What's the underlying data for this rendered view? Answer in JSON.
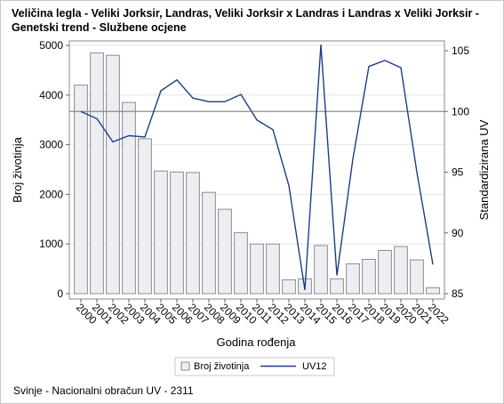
{
  "chart_data": {
    "type": "bar+line",
    "title": "Veličina legla - Veliki Jorksir, Landras, Veliki Jorksir x Landras i Landras x Veliki Jorksir - Genetski trend - Službene ocjene",
    "categories": [
      "2000",
      "2001",
      "2002",
      "2003",
      "2004",
      "2005",
      "2006",
      "2007",
      "2008",
      "2009",
      "2010",
      "2011",
      "2012",
      "2013",
      "2014",
      "2015",
      "2016",
      "2017",
      "2018",
      "2019",
      "2020",
      "2021",
      "2022"
    ],
    "xlabel": "Godina rođenja",
    "ylabel_left": "Broj životinja",
    "ylabel_right": "Standardizirana UV",
    "ylim_left": [
      0,
      5000
    ],
    "yticks_left": [
      "0",
      "1000",
      "2000",
      "3000",
      "4000",
      "5000"
    ],
    "ylim_right": [
      85,
      105
    ],
    "yticks_right": [
      "85",
      "90",
      "95",
      "100",
      "105"
    ],
    "reference_line_right": 100,
    "series": [
      {
        "name": "Broj životinja",
        "type": "bar",
        "axis": "left",
        "color": "#eceef3",
        "stroke": "#8c8c8c",
        "values": [
          4200,
          4850,
          4800,
          3850,
          3120,
          2470,
          2450,
          2440,
          2040,
          1700,
          1230,
          1000,
          1000,
          280,
          300,
          970,
          300,
          600,
          690,
          870,
          950,
          680,
          120
        ]
      },
      {
        "name": "UV12",
        "type": "line",
        "axis": "right",
        "color": "#1f3c8a",
        "values": [
          100.0,
          99.4,
          97.5,
          98.0,
          97.9,
          101.7,
          102.6,
          101.1,
          100.8,
          100.8,
          101.4,
          99.3,
          98.5,
          93.9,
          85.3,
          105.5,
          86.5,
          96.1,
          103.7,
          104.2,
          103.6,
          95.0,
          87.4
        ]
      }
    ],
    "legend": [
      "Broj životinja",
      "UV12"
    ],
    "legend_position": "bottom",
    "grid": true
  },
  "footnote": "Svinje - Nacionalni obračun UV - 2311"
}
